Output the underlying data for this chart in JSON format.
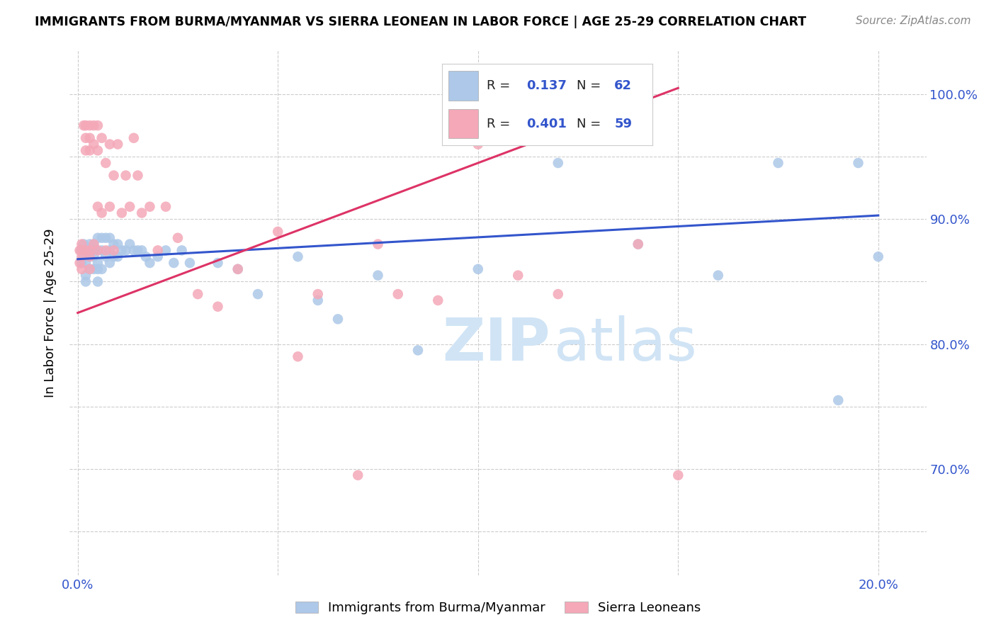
{
  "title": "IMMIGRANTS FROM BURMA/MYANMAR VS SIERRA LEONEAN IN LABOR FORCE | AGE 25-29 CORRELATION CHART",
  "source": "Source: ZipAtlas.com",
  "ylabel": "In Labor Force | Age 25-29",
  "xlim": [
    -0.002,
    0.212
  ],
  "ylim": [
    0.615,
    1.035
  ],
  "blue_color": "#adc8e8",
  "pink_color": "#f4a8b8",
  "blue_line_color": "#3355cc",
  "pink_line_color": "#dd3366",
  "legend_r_blue": "0.137",
  "legend_n_blue": "62",
  "legend_r_pink": "0.401",
  "legend_n_pink": "59",
  "blue_line_x0": 0.0,
  "blue_line_y0": 0.868,
  "blue_line_x1": 0.2,
  "blue_line_y1": 0.903,
  "pink_line_x0": 0.0,
  "pink_line_y0": 0.825,
  "pink_line_x1": 0.15,
  "pink_line_y1": 1.005,
  "blue_scatter_x": [
    0.0008,
    0.001,
    0.0015,
    0.0015,
    0.002,
    0.002,
    0.002,
    0.002,
    0.003,
    0.003,
    0.003,
    0.003,
    0.004,
    0.004,
    0.004,
    0.004,
    0.005,
    0.005,
    0.005,
    0.005,
    0.005,
    0.006,
    0.006,
    0.006,
    0.007,
    0.007,
    0.008,
    0.008,
    0.008,
    0.009,
    0.009,
    0.01,
    0.01,
    0.011,
    0.012,
    0.013,
    0.014,
    0.015,
    0.016,
    0.017,
    0.018,
    0.02,
    0.022,
    0.024,
    0.026,
    0.028,
    0.035,
    0.04,
    0.045,
    0.055,
    0.06,
    0.065,
    0.075,
    0.085,
    0.1,
    0.12,
    0.14,
    0.16,
    0.175,
    0.19,
    0.195,
    0.2
  ],
  "blue_scatter_y": [
    0.875,
    0.865,
    0.88,
    0.87,
    0.875,
    0.865,
    0.855,
    0.85,
    0.88,
    0.875,
    0.87,
    0.86,
    0.88,
    0.875,
    0.87,
    0.86,
    0.885,
    0.875,
    0.865,
    0.86,
    0.85,
    0.885,
    0.875,
    0.86,
    0.885,
    0.87,
    0.885,
    0.875,
    0.865,
    0.88,
    0.87,
    0.88,
    0.87,
    0.875,
    0.875,
    0.88,
    0.875,
    0.875,
    0.875,
    0.87,
    0.865,
    0.87,
    0.875,
    0.865,
    0.875,
    0.865,
    0.865,
    0.86,
    0.84,
    0.87,
    0.835,
    0.82,
    0.855,
    0.795,
    0.86,
    0.945,
    0.88,
    0.855,
    0.945,
    0.755,
    0.945,
    0.87
  ],
  "pink_scatter_x": [
    0.0005,
    0.0005,
    0.001,
    0.001,
    0.001,
    0.001,
    0.0015,
    0.002,
    0.002,
    0.002,
    0.002,
    0.003,
    0.003,
    0.003,
    0.003,
    0.003,
    0.003,
    0.004,
    0.004,
    0.004,
    0.005,
    0.005,
    0.005,
    0.005,
    0.006,
    0.006,
    0.007,
    0.007,
    0.008,
    0.008,
    0.009,
    0.009,
    0.01,
    0.011,
    0.012,
    0.013,
    0.014,
    0.015,
    0.016,
    0.018,
    0.02,
    0.022,
    0.025,
    0.03,
    0.035,
    0.04,
    0.05,
    0.055,
    0.06,
    0.07,
    0.075,
    0.08,
    0.09,
    0.1,
    0.11,
    0.12,
    0.13,
    0.14,
    0.15
  ],
  "pink_scatter_y": [
    0.875,
    0.865,
    0.88,
    0.875,
    0.87,
    0.86,
    0.975,
    0.975,
    0.965,
    0.955,
    0.875,
    0.975,
    0.965,
    0.955,
    0.875,
    0.87,
    0.86,
    0.975,
    0.96,
    0.88,
    0.975,
    0.955,
    0.91,
    0.875,
    0.965,
    0.905,
    0.945,
    0.875,
    0.96,
    0.91,
    0.935,
    0.875,
    0.96,
    0.905,
    0.935,
    0.91,
    0.965,
    0.935,
    0.905,
    0.91,
    0.875,
    0.91,
    0.885,
    0.84,
    0.83,
    0.86,
    0.89,
    0.79,
    0.84,
    0.695,
    0.88,
    0.84,
    0.835,
    0.96,
    0.855,
    0.84,
    0.965,
    0.88,
    0.695
  ]
}
